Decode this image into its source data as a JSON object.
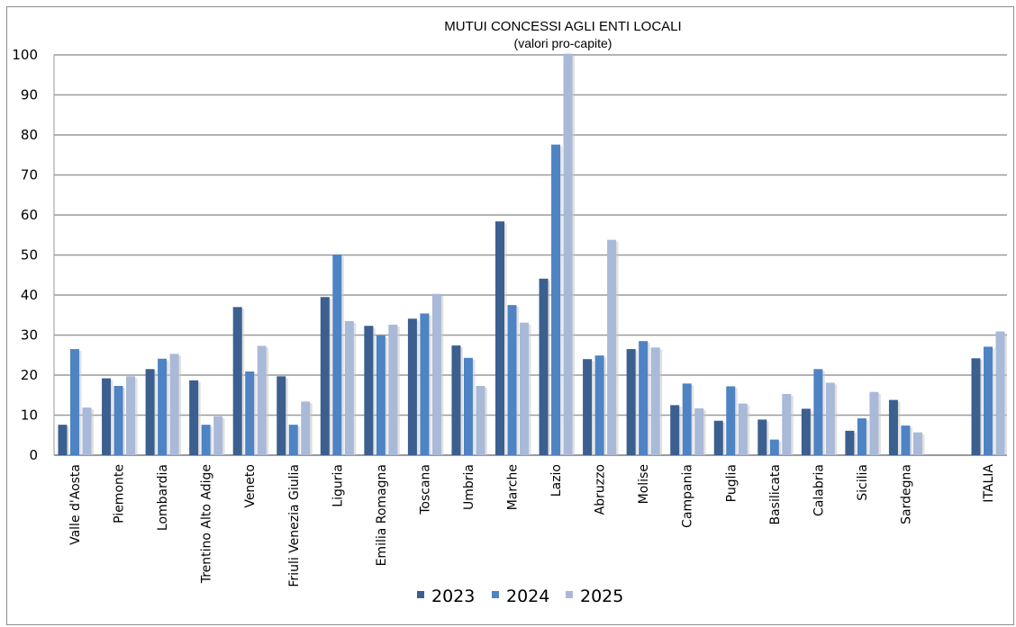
{
  "chart_data": {
    "type": "bar",
    "title": "MUTUI CONCESSI AGLI ENTI LOCALI",
    "subtitle": "(valori pro-capite)",
    "xlabel": "",
    "ylabel": "",
    "ylim": [
      0,
      100
    ],
    "yticks": [
      0,
      10,
      20,
      30,
      40,
      50,
      60,
      70,
      80,
      90,
      100
    ],
    "grid": true,
    "legend_position": "bottom",
    "categories": [
      "Valle d'Aosta",
      "Piemonte",
      "Lombardia",
      "Trentino Alto Adige",
      "Veneto",
      "Friuli Venezia Giulia",
      "Liguria",
      "Emilia Romagna",
      "Toscana",
      "Umbria",
      "Marche",
      "Lazio",
      "Abruzzo",
      "Molise",
      "Campania",
      "Puglia",
      "Basilicata",
      "Calabria",
      "Sicilia",
      "Sardegna",
      "ITALIA"
    ],
    "series": [
      {
        "name": "2023",
        "color": "#3b5f8f",
        "values": [
          7.6,
          19.2,
          21.5,
          18.7,
          37.0,
          19.7,
          39.5,
          32.3,
          34.1,
          27.4,
          58.4,
          44.1,
          24.0,
          26.5,
          12.5,
          8.6,
          8.9,
          11.6,
          6.1,
          13.8,
          24.2
        ]
      },
      {
        "name": "2024",
        "color": "#4e83c4",
        "values": [
          26.5,
          17.3,
          24.1,
          7.6,
          20.9,
          7.6,
          50.1,
          29.9,
          35.4,
          24.3,
          37.5,
          77.6,
          24.9,
          28.5,
          17.9,
          17.2,
          3.9,
          21.5,
          9.2,
          7.4,
          27.1
        ]
      },
      {
        "name": "2025",
        "color": "#a9b9d8",
        "values": [
          11.9,
          19.7,
          25.3,
          9.7,
          27.3,
          13.4,
          33.5,
          32.6,
          40.3,
          17.3,
          33.1,
          100.3,
          53.8,
          26.9,
          11.7,
          12.9,
          15.3,
          18.1,
          15.8,
          5.7,
          30.9
        ]
      }
    ]
  }
}
